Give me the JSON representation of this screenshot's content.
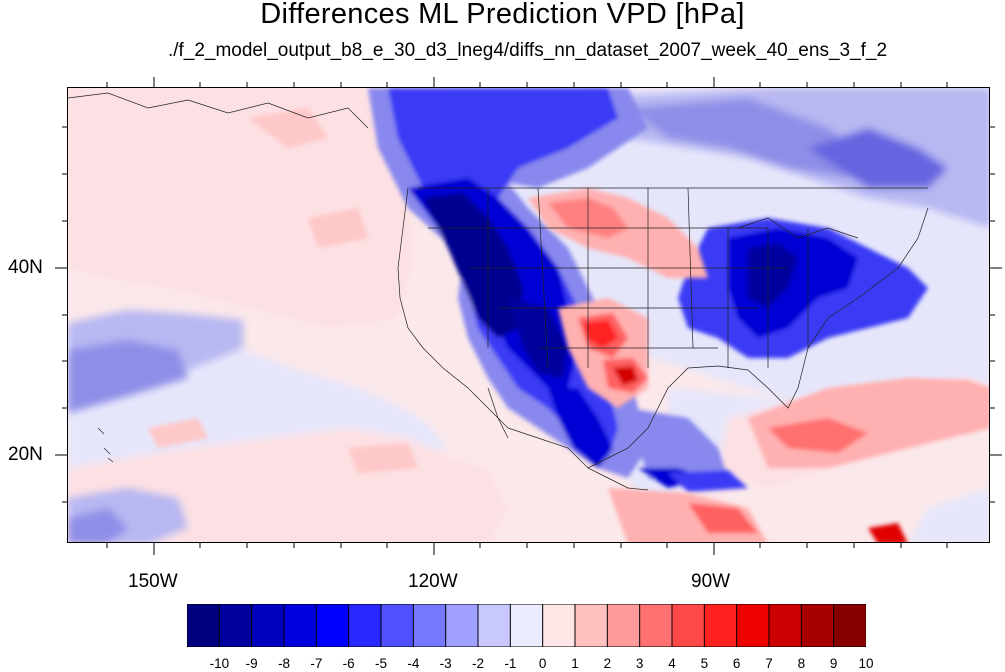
{
  "title": "Differences ML Prediction VPD [hPa]",
  "subtitle": "./f_2_model_output_b8_e_30_d3_lneg4/diffs_nn_dataset_2007_week_40_ens_3_f_2",
  "axes": {
    "lon_labels": [
      "150W",
      "120W",
      "90W"
    ],
    "lat_labels": [
      "40N",
      "20N"
    ]
  },
  "colorbar": {
    "labels": [
      "-10",
      "-9",
      "-8",
      "-7",
      "-6",
      "-5",
      "-4",
      "-3",
      "-2",
      "-1",
      "0",
      "1",
      "2",
      "3",
      "4",
      "5",
      "6",
      "7",
      "8",
      "9",
      "10"
    ],
    "colors": [
      "#00007f",
      "#00009f",
      "#0000bf",
      "#0000df",
      "#0000ff",
      "#2828ff",
      "#5050ff",
      "#7878ff",
      "#a0a0ff",
      "#c8c8ff",
      "#ececff",
      "#ffe6e6",
      "#ffc0c0",
      "#ff9a9a",
      "#ff7070",
      "#ff4848",
      "#ff2020",
      "#ec0000",
      "#cc0000",
      "#a80000",
      "#860000"
    ]
  }
}
